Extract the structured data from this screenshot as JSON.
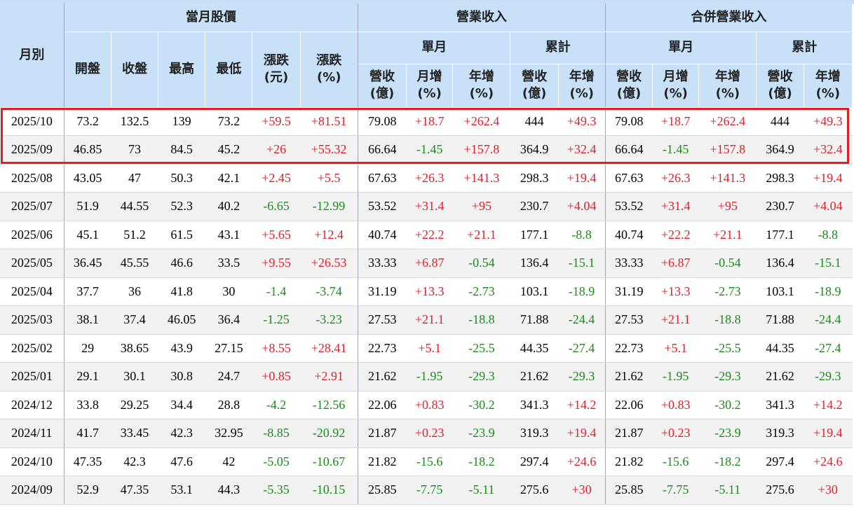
{
  "headers": {
    "month": "月別",
    "stock_group": "當月股價",
    "revenue_group": "營業收入",
    "consolidated_group": "合併營業收入",
    "single_month": "單月",
    "cumulative": "累計",
    "stock_cols": [
      "開盤",
      "收盤",
      "最高",
      "最低",
      "漲跌\n(元)",
      "漲跌\n(%)"
    ],
    "rev_single_cols": [
      "營收\n(億)",
      "月增\n(%)",
      "年增\n(%)"
    ],
    "rev_cum_cols": [
      "營收\n(億)",
      "年增\n(%)"
    ]
  },
  "colors": {
    "header_bg": "#c8e1f8",
    "highlight": "#e01f28",
    "positive": "#e0202a",
    "negative": "#1a8a1a"
  },
  "rows": [
    [
      "2025/10",
      "73.2",
      "132.5",
      "139",
      "73.2",
      "+59.5",
      "+81.51",
      "79.08",
      "+18.7",
      "+262.4",
      "444",
      "+49.3",
      "79.08",
      "+18.7",
      "+262.4",
      "444",
      "+49.3"
    ],
    [
      "2025/09",
      "46.85",
      "73",
      "84.5",
      "45.2",
      "+26",
      "+55.32",
      "66.64",
      "-1.45",
      "+157.8",
      "364.9",
      "+32.4",
      "66.64",
      "-1.45",
      "+157.8",
      "364.9",
      "+32.4"
    ],
    [
      "2025/08",
      "43.05",
      "47",
      "50.3",
      "42.1",
      "+2.45",
      "+5.5",
      "67.63",
      "+26.3",
      "+141.3",
      "298.3",
      "+19.4",
      "67.63",
      "+26.3",
      "+141.3",
      "298.3",
      "+19.4"
    ],
    [
      "2025/07",
      "51.9",
      "44.55",
      "52.3",
      "40.2",
      "-6.65",
      "-12.99",
      "53.52",
      "+31.4",
      "+95",
      "230.7",
      "+4.04",
      "53.52",
      "+31.4",
      "+95",
      "230.7",
      "+4.04"
    ],
    [
      "2025/06",
      "45.1",
      "51.2",
      "61.5",
      "43.1",
      "+5.65",
      "+12.4",
      "40.74",
      "+22.2",
      "+21.1",
      "177.1",
      "-8.8",
      "40.74",
      "+22.2",
      "+21.1",
      "177.1",
      "-8.8"
    ],
    [
      "2025/05",
      "36.45",
      "45.55",
      "46.6",
      "33.5",
      "+9.55",
      "+26.53",
      "33.33",
      "+6.87",
      "-0.54",
      "136.4",
      "-15.1",
      "33.33",
      "+6.87",
      "-0.54",
      "136.4",
      "-15.1"
    ],
    [
      "2025/04",
      "37.7",
      "36",
      "41.8",
      "30",
      "-1.4",
      "-3.74",
      "31.19",
      "+13.3",
      "-2.73",
      "103.1",
      "-18.9",
      "31.19",
      "+13.3",
      "-2.73",
      "103.1",
      "-18.9"
    ],
    [
      "2025/03",
      "38.1",
      "37.4",
      "46.05",
      "36.4",
      "-1.25",
      "-3.23",
      "27.53",
      "+21.1",
      "-18.8",
      "71.88",
      "-24.4",
      "27.53",
      "+21.1",
      "-18.8",
      "71.88",
      "-24.4"
    ],
    [
      "2025/02",
      "29",
      "38.65",
      "43.9",
      "27.15",
      "+8.55",
      "+28.41",
      "22.73",
      "+5.1",
      "-25.5",
      "44.35",
      "-27.4",
      "22.73",
      "+5.1",
      "-25.5",
      "44.35",
      "-27.4"
    ],
    [
      "2025/01",
      "29.1",
      "30.1",
      "30.8",
      "24.7",
      "+0.85",
      "+2.91",
      "21.62",
      "-1.95",
      "-29.3",
      "21.62",
      "-29.3",
      "21.62",
      "-1.95",
      "-29.3",
      "21.62",
      "-29.3"
    ],
    [
      "2024/12",
      "33.8",
      "29.25",
      "34.4",
      "28.8",
      "-4.2",
      "-12.56",
      "22.06",
      "+0.83",
      "-30.2",
      "341.3",
      "+14.2",
      "22.06",
      "+0.83",
      "-30.2",
      "341.3",
      "+14.2"
    ],
    [
      "2024/11",
      "41.7",
      "33.45",
      "42.3",
      "32.95",
      "-8.85",
      "-20.92",
      "21.87",
      "+0.23",
      "-23.9",
      "319.3",
      "+19.4",
      "21.87",
      "+0.23",
      "-23.9",
      "319.3",
      "+19.4"
    ],
    [
      "2024/10",
      "47.35",
      "42.3",
      "47.6",
      "42",
      "-5.05",
      "-10.67",
      "21.82",
      "-15.6",
      "-18.2",
      "297.4",
      "+24.6",
      "21.82",
      "-15.6",
      "-18.2",
      "297.4",
      "+24.6"
    ],
    [
      "2024/09",
      "52.9",
      "47.35",
      "53.1",
      "44.3",
      "-5.35",
      "-10.15",
      "25.85",
      "-7.75",
      "-5.11",
      "275.6",
      "+30",
      "25.85",
      "-7.75",
      "-5.11",
      "275.6",
      "+30"
    ]
  ]
}
